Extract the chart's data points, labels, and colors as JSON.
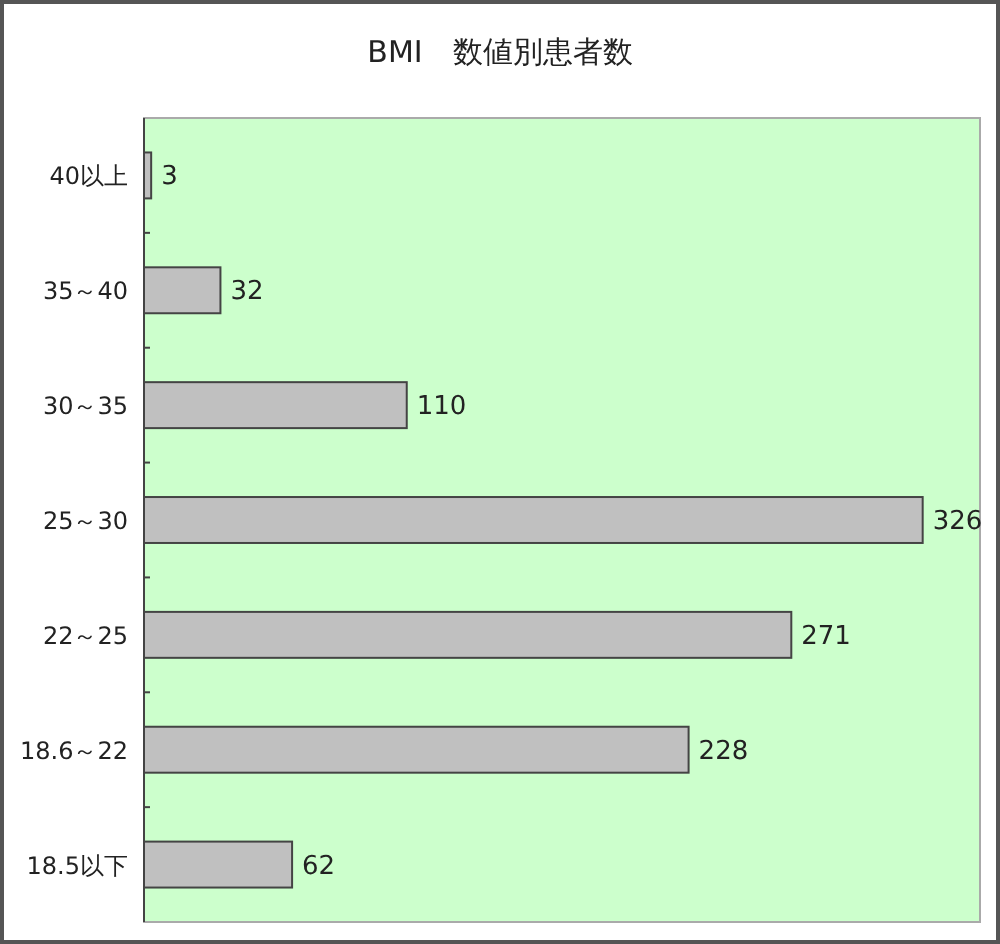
{
  "chart_data": {
    "type": "bar",
    "orientation": "horizontal",
    "title": "BMI　数値別患者数",
    "categories": [
      "40以上",
      "35～40",
      "30～35",
      "25～30",
      "22～25",
      "18.6～22",
      "18.5以下"
    ],
    "values": [
      3,
      32,
      110,
      326,
      271,
      228,
      62
    ],
    "color": "#c0c0c0",
    "xlim": [
      0,
      350
    ],
    "data_labels": true
  }
}
